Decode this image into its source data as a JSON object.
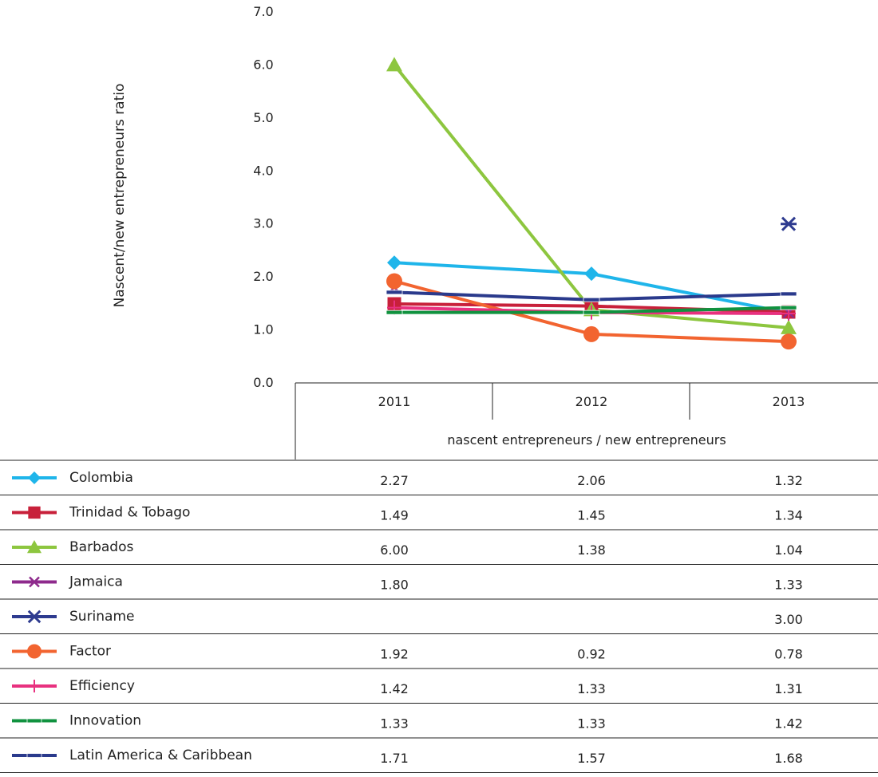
{
  "chart_data": {
    "type": "line",
    "ylabel": "Nascent/new entrepreneurs ratio",
    "xlabel": "nascent entrepreneurs / new entrepreneurs",
    "categories": [
      "2011",
      "2012",
      "2013"
    ],
    "ylim": [
      0,
      7
    ],
    "yticks": [
      "0.0",
      "1.0",
      "2.0",
      "3.0",
      "4.0",
      "5.0",
      "6.0",
      "7.0"
    ],
    "grid": false,
    "legend_placement": "bottom-left (data table)",
    "series": [
      {
        "name": "Colombia",
        "values": [
          2.27,
          2.06,
          1.32
        ],
        "labels": [
          "2.27",
          "2.06",
          "1.32"
        ],
        "color": "#1fb5ea",
        "marker": "diamond"
      },
      {
        "name": "Trinidad & Tobago",
        "values": [
          1.49,
          1.45,
          1.34
        ],
        "labels": [
          "1.49",
          "1.45",
          "1.34"
        ],
        "color": "#c8203a",
        "marker": "square"
      },
      {
        "name": "Barbados",
        "values": [
          6.0,
          1.38,
          1.04
        ],
        "labels": [
          "6.00",
          "1.38",
          "1.04"
        ],
        "color": "#8dc63f",
        "marker": "triangle"
      },
      {
        "name": "Jamaica",
        "values": [
          1.8,
          null,
          1.33
        ],
        "labels": [
          "1.80",
          "",
          "1.33"
        ],
        "color": "#8e2a8c",
        "marker": "x"
      },
      {
        "name": "Suriname",
        "values": [
          null,
          null,
          3.0
        ],
        "labels": [
          "",
          "",
          "3.00"
        ],
        "color": "#2e3b8f",
        "marker": "star"
      },
      {
        "name": "Factor",
        "values": [
          1.92,
          0.92,
          0.78
        ],
        "labels": [
          "1.92",
          "0.92",
          "0.78"
        ],
        "color": "#f26430",
        "marker": "circle"
      },
      {
        "name": "Efficiency",
        "values": [
          1.42,
          1.33,
          1.31
        ],
        "labels": [
          "1.42",
          "1.33",
          "1.31"
        ],
        "color": "#e8317f",
        "marker": "plus"
      },
      {
        "name": "Innovation",
        "values": [
          1.33,
          1.33,
          1.42
        ],
        "labels": [
          "1.33",
          "1.33",
          "1.42"
        ],
        "color": "#10923f",
        "marker": "dash"
      },
      {
        "name": "Latin America & Caribbean",
        "values": [
          1.71,
          1.57,
          1.68
        ],
        "labels": [
          "1.71",
          "1.57",
          "1.68"
        ],
        "color": "#2a3a8c",
        "marker": "dash"
      }
    ]
  }
}
